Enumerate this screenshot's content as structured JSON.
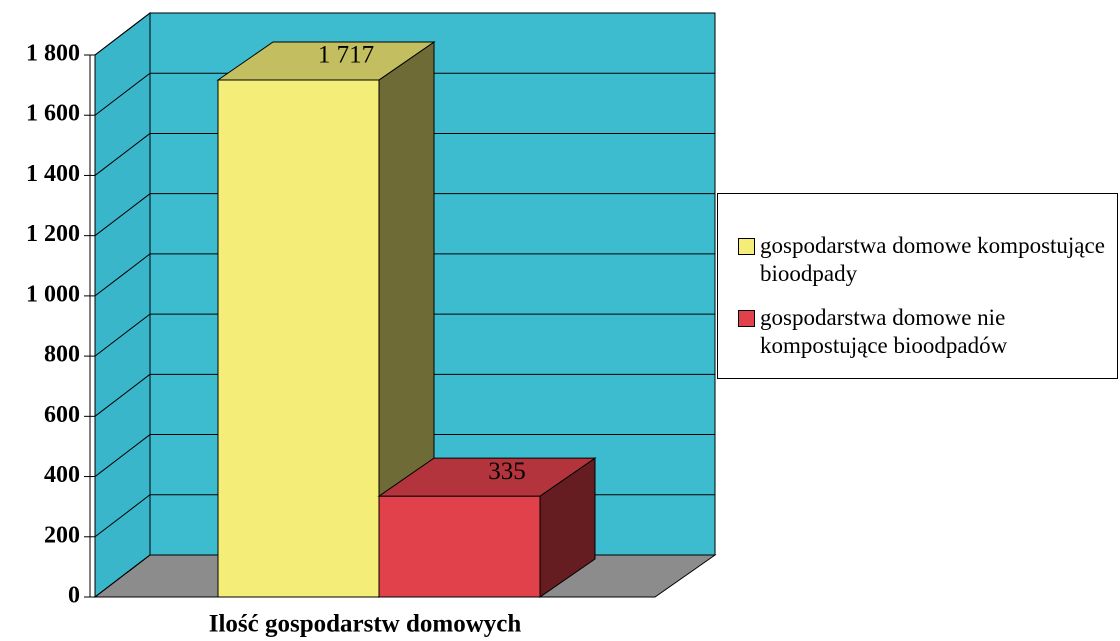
{
  "chart_data": {
    "type": "bar",
    "categories": [
      "Ilość gospodarstw domowych"
    ],
    "series": [
      {
        "name": "gospodarstwa domowe kompostujące bioodpady",
        "color": "#f4ee78",
        "values": [
          1717
        ],
        "value_labels": [
          "1 717"
        ]
      },
      {
        "name": "gospodarstwa domowe nie kompostujące bioodpadów",
        "color": "#e0414b",
        "values": [
          335
        ],
        "value_labels": [
          "335"
        ]
      }
    ],
    "ylim": [
      0,
      1800
    ],
    "yticks": [
      0,
      200,
      400,
      600,
      800,
      {
        "value": 1000,
        "label": "1 000"
      },
      {
        "value": 1200,
        "label": "1 200"
      },
      {
        "value": 1400,
        "label": "1 400"
      },
      {
        "value": 1600,
        "label": "1 600"
      },
      {
        "value": 1800,
        "label": "1 800"
      }
    ],
    "grid": true,
    "legend": "right"
  }
}
